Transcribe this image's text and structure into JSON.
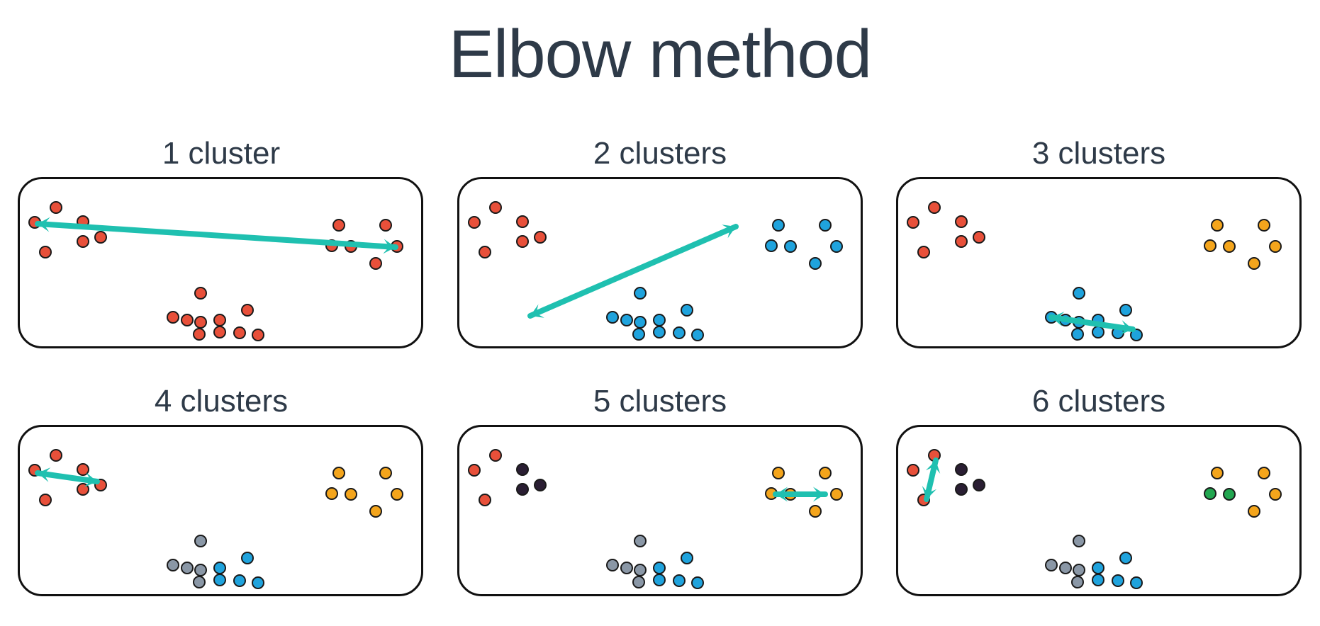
{
  "title": "Elbow method",
  "colors": {
    "red": "#e8503a",
    "blue": "#1fa3dd",
    "orange": "#f4a51c",
    "gray": "#8a97a6",
    "dark": "#2a1e33",
    "green": "#22a650",
    "arrow": "#1fc0b0",
    "text": "#2e3a48"
  },
  "panels": [
    {
      "label": "1 cluster",
      "groups": {
        "left": "red",
        "right": "red",
        "bottom_left": "red",
        "bottom_right": "red"
      },
      "arrow": "left-to-right"
    },
    {
      "label": "2 clusters",
      "groups": {
        "left": "red",
        "right": "blue",
        "bottom_left": "blue",
        "bottom_right": "blue"
      },
      "arrow": "bottom-to-right"
    },
    {
      "label": "3 clusters",
      "groups": {
        "left": "red",
        "right": "orange",
        "bottom_left": "blue",
        "bottom_right": "blue"
      },
      "arrow": "within-bottom"
    },
    {
      "label": "4 clusters",
      "groups": {
        "left": "red",
        "right": "orange",
        "bottom_left": "gray",
        "bottom_right": "blue"
      },
      "arrow": "within-left"
    },
    {
      "label": "5 clusters",
      "groups": {
        "left": "red",
        "left_inner": "dark",
        "right": "orange",
        "bottom_left": "gray",
        "bottom_right": "blue"
      },
      "arrow": "within-right"
    },
    {
      "label": "6 clusters",
      "groups": {
        "left": "red",
        "left_inner": "dark",
        "right": "orange",
        "right_inner": "green",
        "bottom_left": "gray",
        "bottom_right": "blue"
      },
      "arrow": "within-left-small"
    }
  ]
}
